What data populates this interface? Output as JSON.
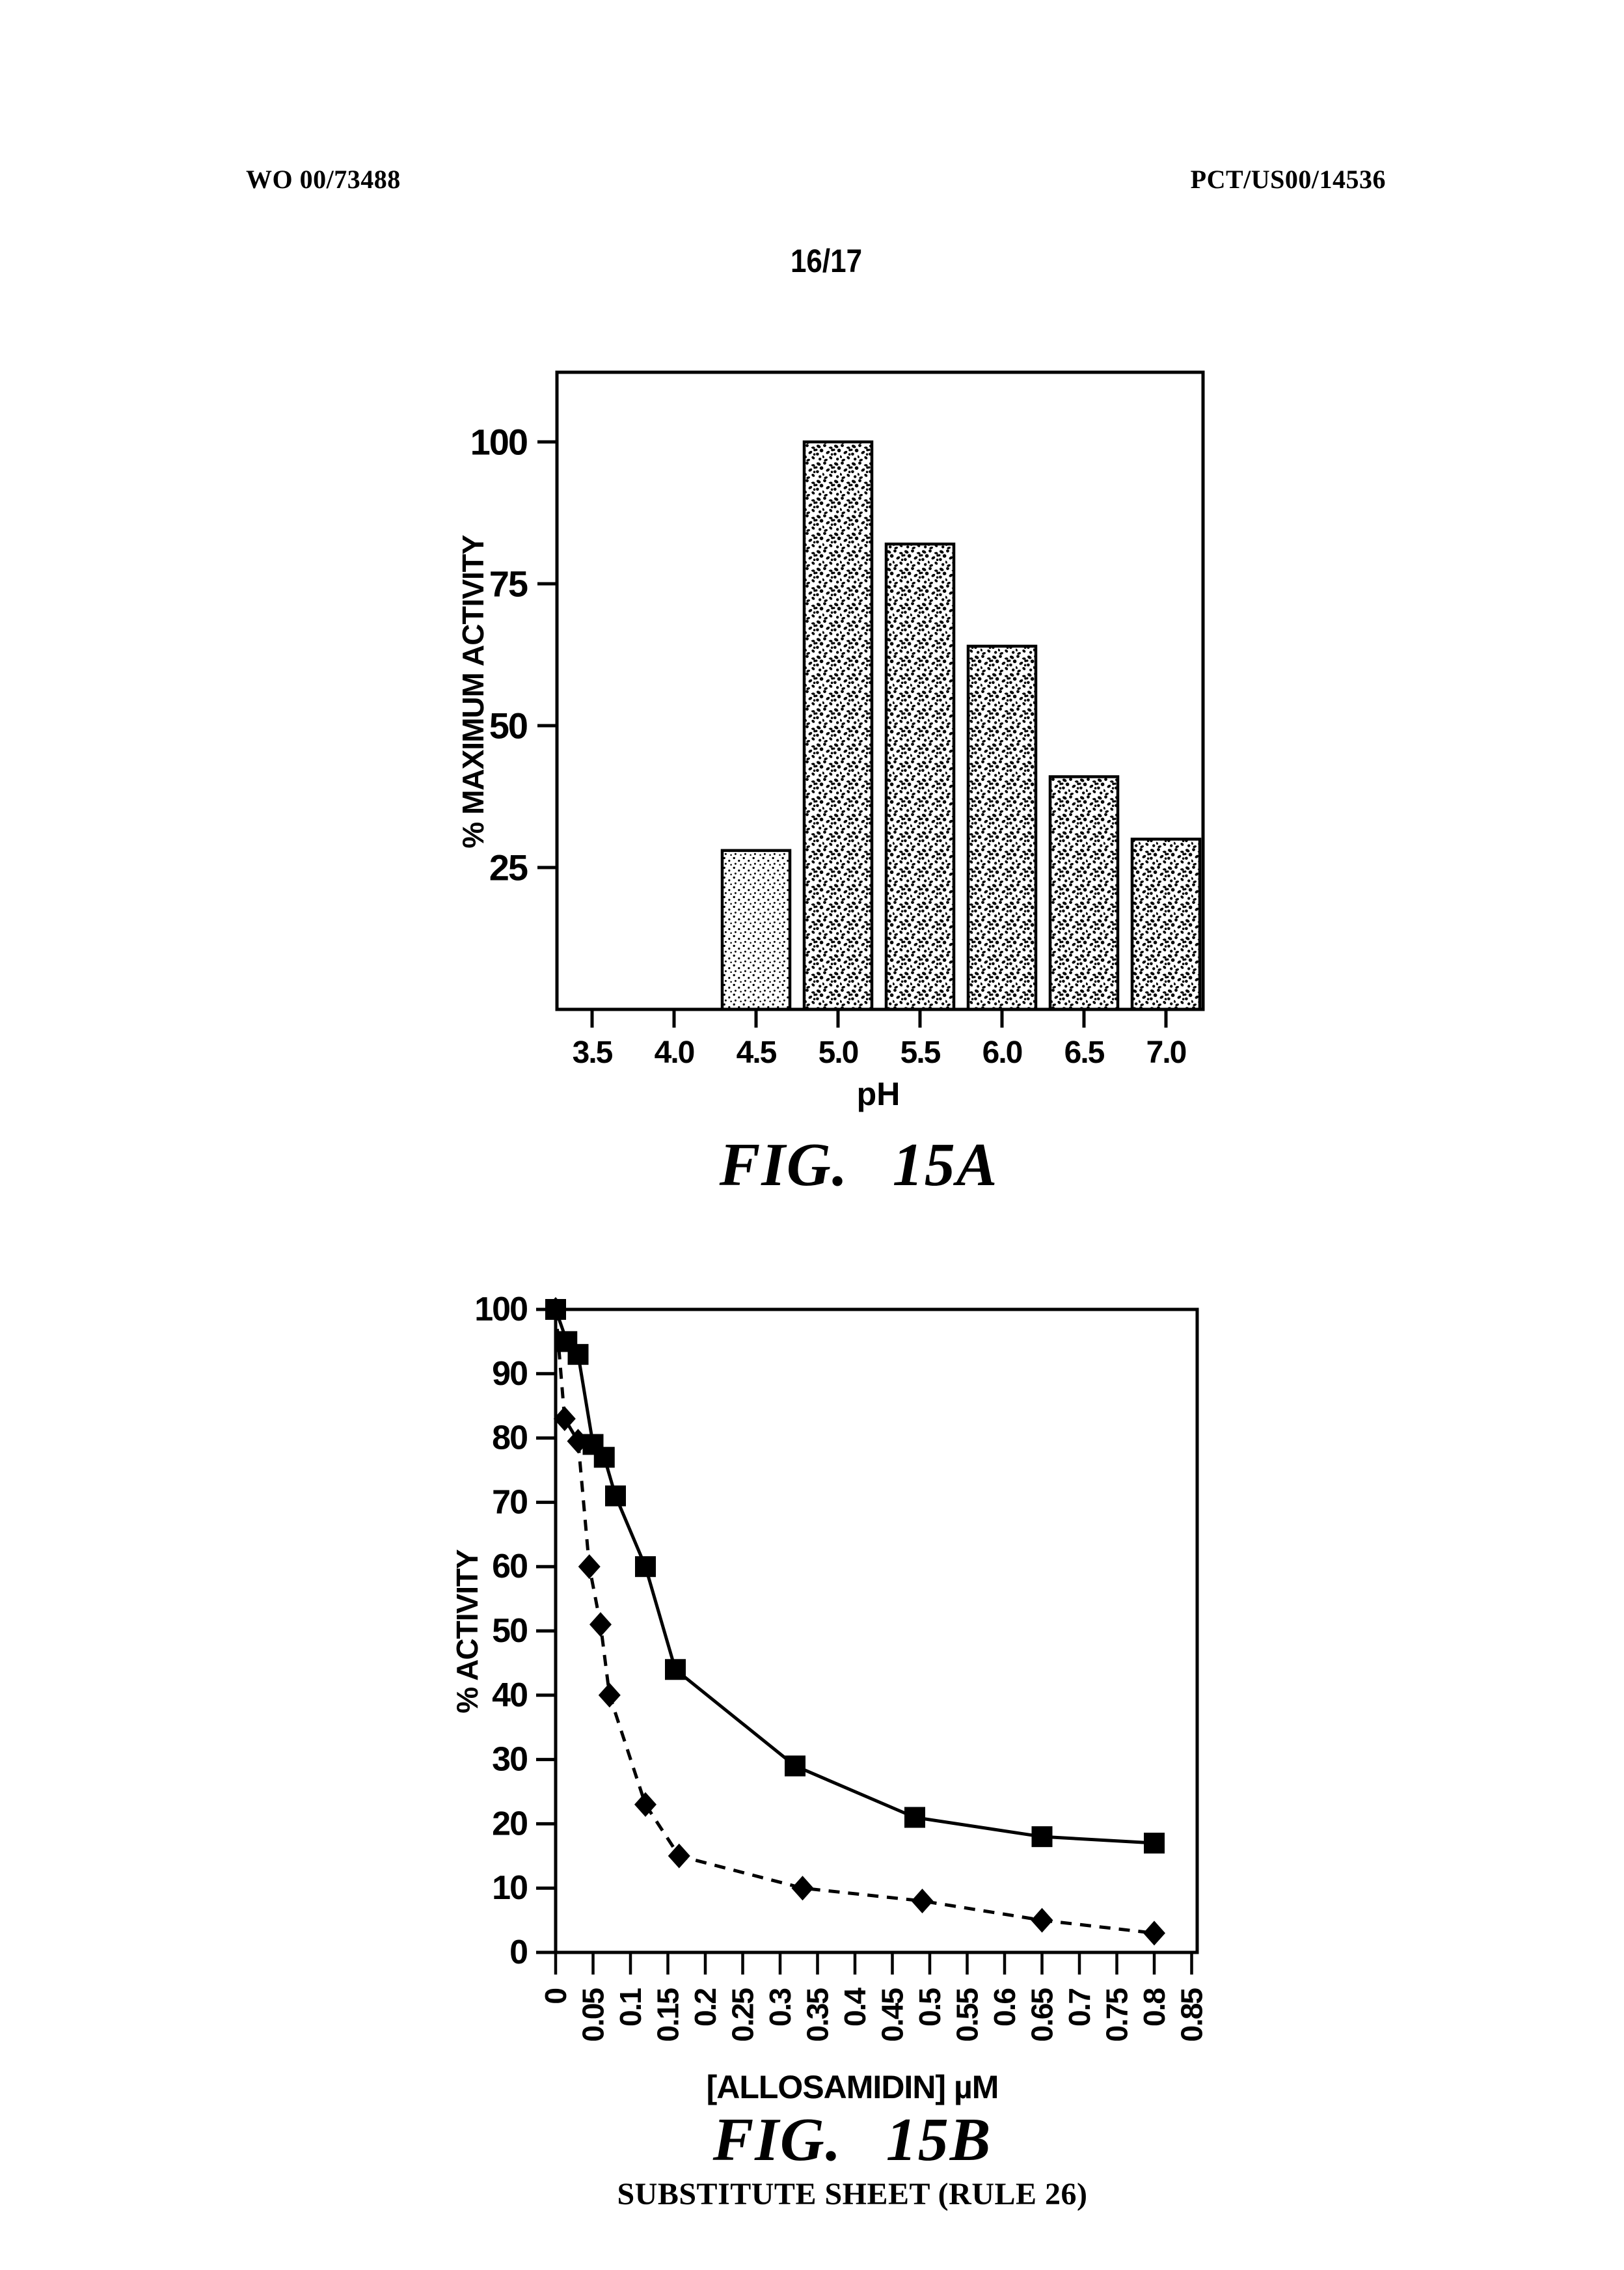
{
  "page": {
    "header_left": "WO 00/73488",
    "header_right": "PCT/US00/14536",
    "page_number": "16/17",
    "footer": "SUBSTITUTE SHEET (RULE 26)"
  },
  "chart_data": [
    {
      "id": "fig15a",
      "type": "bar",
      "title": "FIG. 15A",
      "xlabel": "pH",
      "ylabel": "% MAXIMUM ACTIVITY",
      "categories": [
        "3.5",
        "4.0",
        "4.5",
        "5.0",
        "5.5",
        "6.0",
        "6.5",
        "7.0"
      ],
      "values": [
        null,
        null,
        28,
        100,
        82,
        64,
        41,
        30
      ],
      "bar_styles": [
        null,
        null,
        "light-stipple",
        "dark-stipple",
        "dark-stipple",
        "dark-stipple",
        "dark-stipple",
        "dark-stipple"
      ],
      "y_ticks": [
        25,
        50,
        75,
        100
      ],
      "ylim": [
        0,
        112
      ],
      "grid": false,
      "legend": false
    },
    {
      "id": "fig15b",
      "type": "line",
      "title": "FIG. 15B",
      "xlabel": "[ALLOSAMIDIN] µM",
      "ylabel": "% ACTIVITY",
      "x_ticks": [
        0,
        0.05,
        0.1,
        0.15,
        0.2,
        0.25,
        0.3,
        0.35,
        0.4,
        0.45,
        0.5,
        0.55,
        0.6,
        0.65,
        0.7,
        0.75,
        0.8,
        0.85
      ],
      "x_tick_labels": [
        "0",
        "0.05",
        "0.1",
        "0.15",
        "0.2",
        "0.25",
        "0.3",
        "0.35",
        "0.4",
        "0.45",
        "0.5",
        "0.55",
        "0.6",
        "0.65",
        "0.7",
        "0.75",
        "0.8",
        "0.85"
      ],
      "y_ticks": [
        0,
        10,
        20,
        30,
        40,
        50,
        60,
        70,
        80,
        90,
        100
      ],
      "xlim": [
        0,
        0.88
      ],
      "ylim": [
        0,
        100
      ],
      "grid": false,
      "legend": false,
      "series": [
        {
          "name": "filled-squares-solid-line",
          "marker": "square",
          "line": "solid",
          "points": [
            [
              0,
              100
            ],
            [
              0.015,
              95
            ],
            [
              0.03,
              93
            ],
            [
              0.05,
              79
            ],
            [
              0.065,
              77
            ],
            [
              0.08,
              71
            ],
            [
              0.12,
              60
            ],
            [
              0.16,
              44
            ],
            [
              0.32,
              29
            ],
            [
              0.48,
              21
            ],
            [
              0.65,
              18
            ],
            [
              0.8,
              17
            ]
          ]
        },
        {
          "name": "filled-diamonds-dashed-line",
          "marker": "diamond",
          "line": "dashed",
          "points": [
            [
              0,
              100
            ],
            [
              0.012,
              83
            ],
            [
              0.03,
              79.5
            ],
            [
              0.045,
              60
            ],
            [
              0.06,
              51
            ],
            [
              0.072,
              40
            ],
            [
              0.12,
              23
            ],
            [
              0.165,
              15
            ],
            [
              0.33,
              10
            ],
            [
              0.49,
              8
            ],
            [
              0.65,
              5
            ],
            [
              0.8,
              3
            ]
          ]
        }
      ]
    }
  ]
}
